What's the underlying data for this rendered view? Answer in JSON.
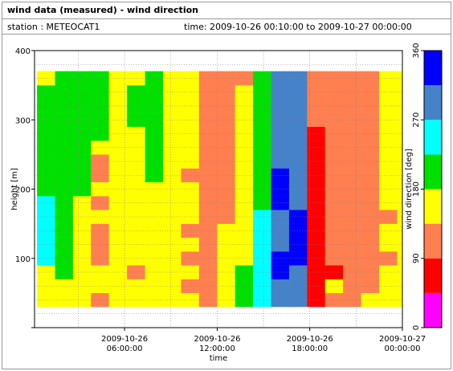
{
  "header": {
    "title": "wind data (measured) - wind direction",
    "station_label": "station : METEOCAT1",
    "time_label": "time: 2009-10-26 00:10:00 to 2009-10-27 00:00:00"
  },
  "chart_data": {
    "type": "heatmap",
    "xlabel": "time",
    "ylabel": "height [m]",
    "colorbar_label": "wind direction [deg]",
    "x_range": [
      "2009-10-26 00:10:00",
      "2009-10-27 00:00:00"
    ],
    "x_ticks": [
      {
        "t": "2009-10-26 06:00:00",
        "line1": "2009-10-26",
        "line2": "06:00:00"
      },
      {
        "t": "2009-10-26 12:00:00",
        "line1": "2009-10-26",
        "line2": "12:00:00"
      },
      {
        "t": "2009-10-26 18:00:00",
        "line1": "2009-10-26",
        "line2": "18:00:00"
      },
      {
        "t": "2009-10-27 00:00:00",
        "line1": "2009-10-27",
        "line2": "00:00:00"
      }
    ],
    "y_range": [
      0,
      400
    ],
    "y_ticks": [
      100,
      200,
      300,
      400
    ],
    "colorbar_range": [
      0,
      360
    ],
    "colorbar_ticks": [
      0,
      90,
      180,
      270,
      360
    ],
    "color_levels": [
      {
        "from": 0,
        "to": 45,
        "color": "#ff00ff"
      },
      {
        "from": 45,
        "to": 90,
        "color": "#ff0000"
      },
      {
        "from": 90,
        "to": 135,
        "color": "#ff7f50"
      },
      {
        "from": 135,
        "to": 180,
        "color": "#ffff00"
      },
      {
        "from": 180,
        "to": 225,
        "color": "#00e000"
      },
      {
        "from": 225,
        "to": 270,
        "color": "#00ffff"
      },
      {
        "from": 270,
        "to": 315,
        "color": "#4682c8"
      },
      {
        "from": 315,
        "to": 360,
        "color": "#0000ff"
      }
    ],
    "grid": true,
    "heights_m": [
      40,
      60,
      80,
      100,
      120,
      140,
      160,
      180,
      200,
      220,
      240,
      260,
      280,
      300,
      320,
      340,
      360
    ],
    "columns": [
      {
        "time": "2009-10-26 00:20:00",
        "dir": [
          160,
          165,
          170,
          240,
          245,
          250,
          240,
          230,
          200,
          200,
          210,
          210,
          200,
          210,
          200,
          200,
          170
        ]
      },
      {
        "time": "2009-10-26 01:30:00",
        "dir": [
          160,
          160,
          200,
          200,
          200,
          200,
          200,
          200,
          200,
          200,
          200,
          200,
          200,
          200,
          200,
          200,
          200
        ]
      },
      {
        "time": "2009-10-26 02:40:00",
        "dir": [
          160,
          160,
          170,
          170,
          160,
          170,
          160,
          170,
          200,
          200,
          200,
          210,
          200,
          200,
          200,
          200,
          200
        ]
      },
      {
        "time": "2009-10-26 03:50:00",
        "dir": [
          120,
          160,
          160,
          120,
          120,
          120,
          160,
          120,
          160,
          120,
          110,
          170,
          200,
          200,
          200,
          200,
          200
        ]
      },
      {
        "time": "2009-10-26 05:00:00",
        "dir": [
          160,
          160,
          160,
          160,
          160,
          160,
          160,
          160,
          160,
          160,
          170,
          160,
          160,
          160,
          160,
          160,
          160
        ]
      },
      {
        "time": "2009-10-26 06:10:00",
        "dir": [
          160,
          160,
          110,
          160,
          160,
          170,
          160,
          160,
          160,
          160,
          160,
          160,
          160,
          200,
          200,
          200,
          160
        ]
      },
      {
        "time": "2009-10-26 07:20:00",
        "dir": [
          160,
          160,
          160,
          160,
          160,
          160,
          160,
          160,
          160,
          200,
          200,
          200,
          200,
          200,
          200,
          200,
          200
        ]
      },
      {
        "time": "2009-10-26 08:30:00",
        "dir": [
          160,
          160,
          160,
          160,
          160,
          160,
          160,
          160,
          160,
          160,
          160,
          160,
          160,
          160,
          160,
          160,
          160
        ]
      },
      {
        "time": "2009-10-26 09:40:00",
        "dir": [
          160,
          110,
          160,
          110,
          160,
          110,
          160,
          160,
          160,
          110,
          160,
          160,
          160,
          160,
          160,
          160,
          160
        ]
      },
      {
        "time": "2009-10-26 10:50:00",
        "dir": [
          110,
          110,
          110,
          110,
          110,
          110,
          110,
          110,
          110,
          110,
          110,
          110,
          110,
          110,
          110,
          110,
          110
        ]
      },
      {
        "time": "2009-10-26 12:00:00",
        "dir": [
          160,
          160,
          160,
          160,
          160,
          160,
          110,
          110,
          110,
          110,
          110,
          110,
          110,
          110,
          110,
          110,
          110
        ]
      },
      {
        "time": "2009-10-26 13:10:00",
        "dir": [
          200,
          200,
          200,
          160,
          160,
          160,
          160,
          160,
          160,
          160,
          160,
          160,
          160,
          160,
          160,
          160,
          110
        ]
      },
      {
        "time": "2009-10-26 14:20:00",
        "dir": [
          250,
          250,
          250,
          250,
          250,
          250,
          250,
          200,
          200,
          200,
          200,
          200,
          200,
          200,
          200,
          200,
          200
        ]
      },
      {
        "time": "2009-10-26 15:30:00",
        "dir": [
          290,
          290,
          330,
          330,
          290,
          290,
          290,
          330,
          330,
          330,
          290,
          290,
          290,
          290,
          290,
          290,
          290
        ]
      },
      {
        "time": "2009-10-26 16:40:00",
        "dir": [
          300,
          300,
          300,
          330,
          330,
          330,
          330,
          300,
          300,
          300,
          300,
          300,
          300,
          300,
          300,
          300,
          300
        ]
      },
      {
        "time": "2009-10-26 17:50:00",
        "dir": [
          60,
          60,
          60,
          60,
          60,
          60,
          60,
          60,
          60,
          60,
          60,
          60,
          60,
          110,
          110,
          110,
          110
        ]
      },
      {
        "time": "2009-10-26 19:00:00",
        "dir": [
          110,
          160,
          60,
          110,
          110,
          110,
          110,
          110,
          110,
          110,
          110,
          110,
          110,
          110,
          110,
          110,
          110
        ]
      },
      {
        "time": "2009-10-26 20:10:00",
        "dir": [
          110,
          110,
          110,
          110,
          110,
          110,
          110,
          110,
          110,
          110,
          110,
          110,
          110,
          110,
          110,
          110,
          110
        ]
      },
      {
        "time": "2009-10-26 21:20:00",
        "dir": [
          160,
          110,
          110,
          110,
          110,
          110,
          110,
          110,
          110,
          110,
          110,
          110,
          110,
          110,
          110,
          110,
          110
        ]
      },
      {
        "time": "2009-10-26 22:30:00",
        "dir": [
          160,
          160,
          160,
          110,
          160,
          160,
          110,
          160,
          160,
          160,
          160,
          160,
          160,
          160,
          160,
          160,
          160
        ]
      },
      {
        "time": "2009-10-26 23:40:00",
        "dir": [
          160,
          160,
          160,
          160,
          160,
          160,
          160,
          160,
          160,
          160,
          160,
          160,
          160,
          160,
          160,
          160,
          160
        ]
      }
    ]
  }
}
